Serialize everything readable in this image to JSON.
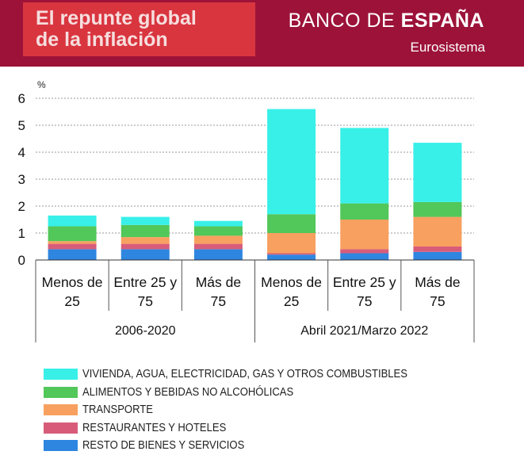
{
  "header": {
    "title_line1": "El repunte global",
    "title_line2": "de la inflación",
    "brand_light": "BANCO DE ",
    "brand_bold": "ESPAÑA",
    "brand_sub": "Eurosistema"
  },
  "colors": {
    "header_bg": "#9c1239",
    "title_bg": "#d9353f"
  },
  "chart_data": {
    "type": "bar",
    "stacked": true,
    "ylabel": "%",
    "ylim": [
      0,
      6
    ],
    "yticks": [
      0,
      1,
      2,
      3,
      4,
      5,
      6
    ],
    "grid": true,
    "categories": [
      {
        "line1": "Menos de",
        "line2": "25"
      },
      {
        "line1": "Entre 25 y",
        "line2": "75"
      },
      {
        "line1": "Más de",
        "line2": "75"
      },
      {
        "line1": "Menos de",
        "line2": "25"
      },
      {
        "line1": "Entre 25 y",
        "line2": "75"
      },
      {
        "line1": "Más de",
        "line2": "75"
      }
    ],
    "groups": [
      {
        "label": "2006-2020",
        "categories": [
          0,
          1,
          2
        ]
      },
      {
        "label": "Abril 2021/Marzo 2022",
        "categories": [
          3,
          4,
          5
        ]
      }
    ],
    "series": [
      {
        "name": "RESTO DE BIENES Y SERVICIOS",
        "color": "#2f86e0",
        "values": [
          0.4,
          0.4,
          0.4,
          0.2,
          0.25,
          0.3
        ]
      },
      {
        "name": "RESTAURANTES Y HOTELES",
        "color": "#d85c7a",
        "values": [
          0.2,
          0.2,
          0.2,
          0.05,
          0.15,
          0.2
        ]
      },
      {
        "name": "TRANSPORTE",
        "color": "#f8a060",
        "values": [
          0.1,
          0.25,
          0.3,
          0.75,
          1.1,
          1.1
        ]
      },
      {
        "name": "ALIMENTOS Y BEBIDAS NO ALCOHÓLICAS",
        "color": "#52c75a",
        "values": [
          0.55,
          0.45,
          0.35,
          0.7,
          0.6,
          0.55
        ]
      },
      {
        "name": "VIVIENDA, AGUA, ELECTRICIDAD, GAS Y OTROS COMBUSTIBLES",
        "color": "#38f0e8",
        "values": [
          0.4,
          0.3,
          0.2,
          3.9,
          2.8,
          2.2
        ]
      }
    ]
  }
}
